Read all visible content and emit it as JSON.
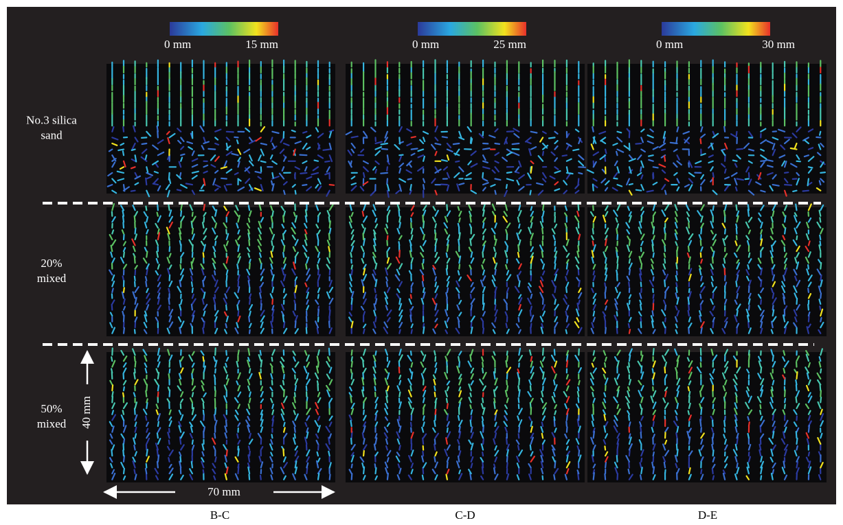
{
  "colorbars": [
    {
      "min_label": "0 mm",
      "max_label": "15 mm"
    },
    {
      "min_label": "0 mm",
      "max_label": "25 mm"
    },
    {
      "min_label": "0 mm",
      "max_label": "30 mm"
    }
  ],
  "rows": [
    {
      "lines": [
        "No.3 silica",
        "sand"
      ]
    },
    {
      "lines": [
        "20%",
        "mixed"
      ]
    },
    {
      "lines": [
        "50%",
        "mixed"
      ]
    }
  ],
  "columns": [
    "B-C",
    "C-D",
    "D-E"
  ],
  "scale": {
    "height": "40 mm",
    "width": "70 mm"
  }
}
